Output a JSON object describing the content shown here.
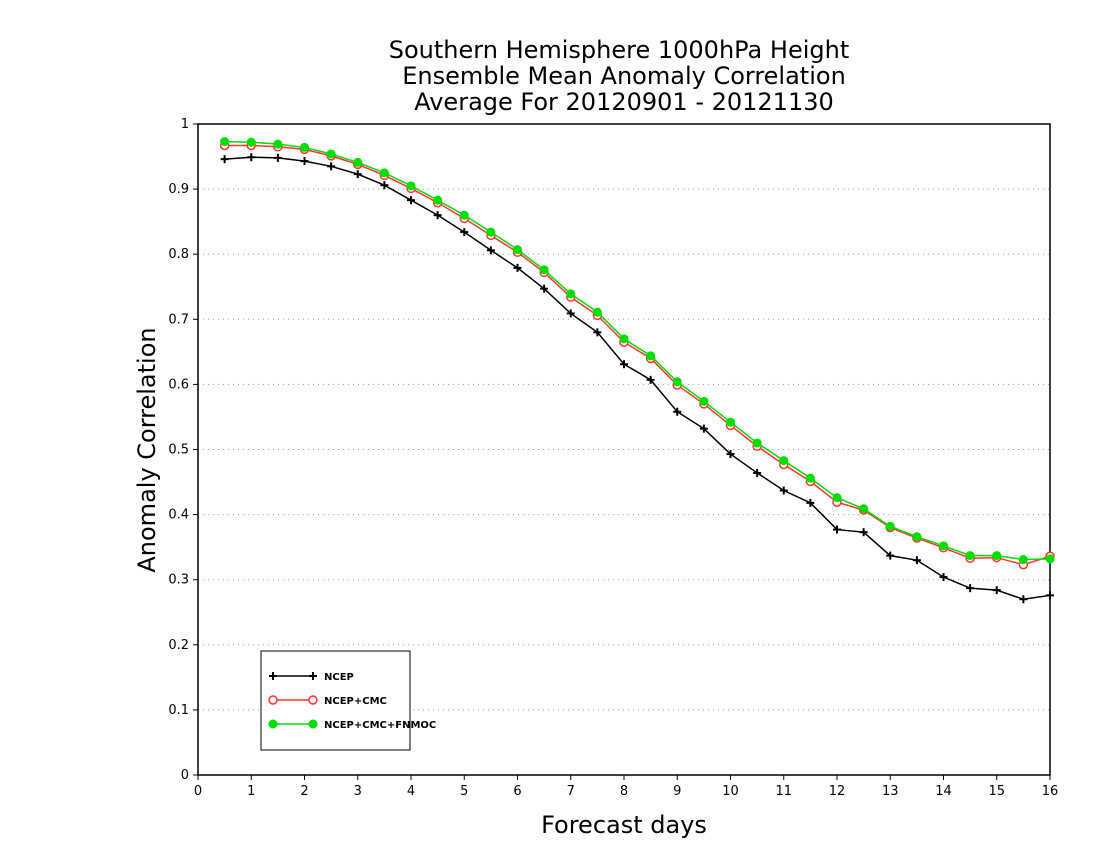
{
  "chart_data": {
    "type": "line",
    "title": [
      "Southern Hemisphere 1000hPa Height",
      "Ensemble Mean Anomaly Correlation",
      "Average For 20120901 - 20121130"
    ],
    "xlabel": "Forecast days",
    "ylabel": "Anomaly Correlation",
    "xlim": [
      0,
      16
    ],
    "ylim": [
      0,
      1
    ],
    "xticks": [
      0,
      1,
      2,
      3,
      4,
      5,
      6,
      7,
      8,
      9,
      10,
      11,
      12,
      13,
      14,
      15,
      16
    ],
    "yticks": [
      0,
      0.1,
      0.2,
      0.3,
      0.4,
      0.5,
      0.6,
      0.7,
      0.8,
      0.9,
      1
    ],
    "grid": "horizontal-dotted",
    "legend_position": "bottom-left",
    "x": [
      0.5,
      1,
      1.5,
      2,
      2.5,
      3,
      3.5,
      4,
      4.5,
      5,
      5.5,
      6,
      6.5,
      7,
      7.5,
      8,
      8.5,
      9,
      9.5,
      10,
      10.5,
      11,
      11.5,
      12,
      12.5,
      13,
      13.5,
      14,
      14.5,
      15,
      15.5,
      16
    ],
    "series": [
      {
        "name": "NCEP",
        "color": "#000000",
        "marker": "plus",
        "values": [
          0.946,
          0.949,
          0.948,
          0.943,
          0.935,
          0.923,
          0.906,
          0.883,
          0.86,
          0.834,
          0.806,
          0.779,
          0.747,
          0.709,
          0.68,
          0.631,
          0.607,
          0.558,
          0.532,
          0.493,
          0.464,
          0.437,
          0.418,
          0.377,
          0.373,
          0.337,
          0.33,
          0.304,
          0.287,
          0.284,
          0.27,
          0.276
        ]
      },
      {
        "name": "NCEP+CMC",
        "color": "#ff3333",
        "marker": "open-circle",
        "values": [
          0.967,
          0.967,
          0.965,
          0.961,
          0.951,
          0.938,
          0.921,
          0.901,
          0.879,
          0.855,
          0.829,
          0.803,
          0.772,
          0.734,
          0.706,
          0.665,
          0.64,
          0.599,
          0.57,
          0.537,
          0.505,
          0.477,
          0.451,
          0.419,
          0.407,
          0.38,
          0.364,
          0.349,
          0.333,
          0.334,
          0.323,
          0.336
        ]
      },
      {
        "name": "NCEP+CMC+FNMOC",
        "color": "#00dd00",
        "marker": "filled-circle",
        "values": [
          0.973,
          0.972,
          0.969,
          0.964,
          0.954,
          0.941,
          0.925,
          0.905,
          0.883,
          0.86,
          0.834,
          0.807,
          0.776,
          0.739,
          0.711,
          0.67,
          0.644,
          0.604,
          0.574,
          0.542,
          0.51,
          0.483,
          0.456,
          0.426,
          0.409,
          0.382,
          0.366,
          0.352,
          0.337,
          0.337,
          0.331,
          0.332
        ]
      }
    ]
  }
}
